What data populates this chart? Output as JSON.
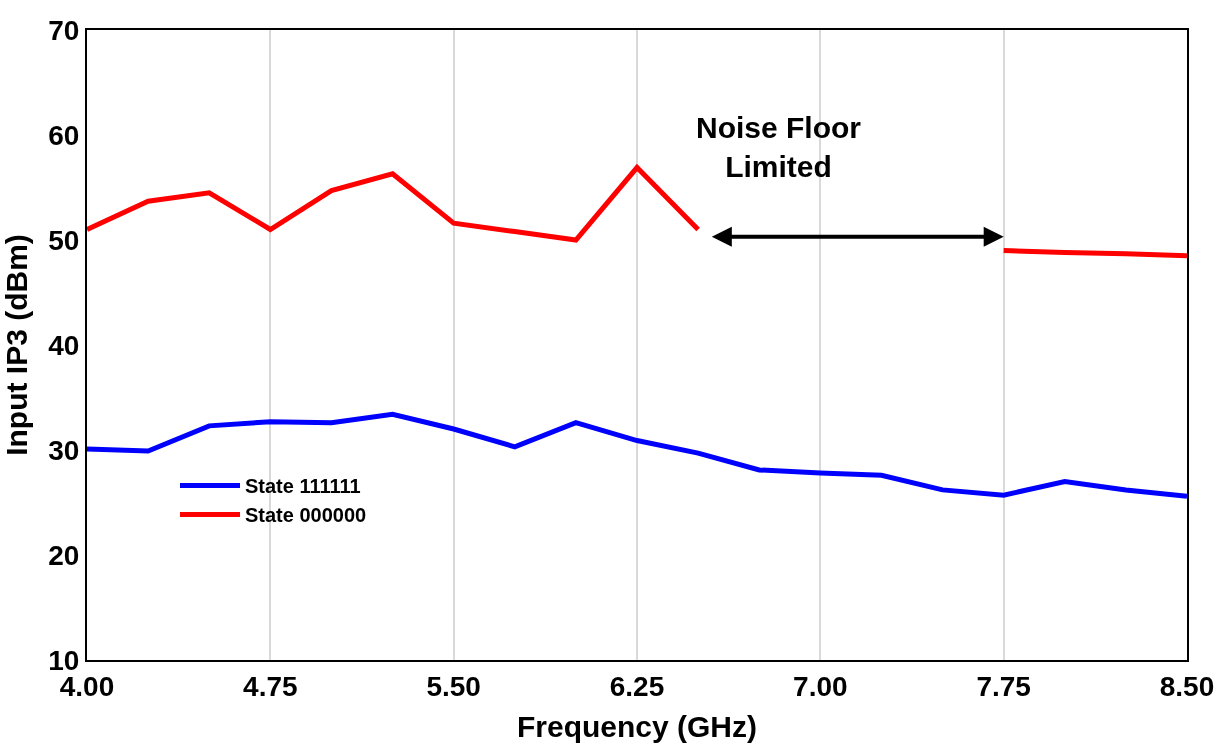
{
  "chart_data": {
    "type": "line",
    "xlabel": "Frequency (GHz)",
    "ylabel": "Input IP3 (dBm)",
    "x": [
      4.0,
      4.25,
      4.5,
      4.75,
      5.0,
      5.25,
      5.5,
      5.75,
      6.0,
      6.25,
      6.5,
      6.75,
      7.0,
      7.25,
      7.5,
      7.75,
      8.0,
      8.25,
      8.5
    ],
    "series": [
      {
        "name": "State 111111",
        "color": "#0000ff",
        "values": [
          30.1,
          29.9,
          32.3,
          32.7,
          32.6,
          33.4,
          32.0,
          30.3,
          32.6,
          30.9,
          29.7,
          28.1,
          27.8,
          27.6,
          26.2,
          25.7,
          27.0,
          26.2,
          25.6
        ]
      },
      {
        "name": "State 000000",
        "color": "#ff0000",
        "values": [
          51.0,
          53.7,
          54.5,
          51.0,
          54.7,
          56.3,
          51.6,
          50.8,
          50.0,
          56.9,
          51.0,
          null,
          null,
          null,
          null,
          49.0,
          48.8,
          48.7,
          48.5
        ]
      }
    ],
    "xlim": [
      4.0,
      8.5
    ],
    "xticks": [
      {
        "value": 4.0,
        "label": "4.00"
      },
      {
        "value": 4.75,
        "label": "4.75"
      },
      {
        "value": 5.5,
        "label": "5.50"
      },
      {
        "value": 6.25,
        "label": "6.25"
      },
      {
        "value": 7.0,
        "label": "7.00"
      },
      {
        "value": 7.75,
        "label": "7.75"
      },
      {
        "value": 8.5,
        "label": "8.50"
      }
    ],
    "ylim": [
      10,
      70
    ],
    "yticks": [
      10,
      20,
      30,
      40,
      50,
      60,
      70
    ],
    "grid": "x",
    "legend": "bottom left",
    "marker": "none",
    "line_style": "solid",
    "annotations": [
      "Noise Floor\nLimited"
    ]
  }
}
